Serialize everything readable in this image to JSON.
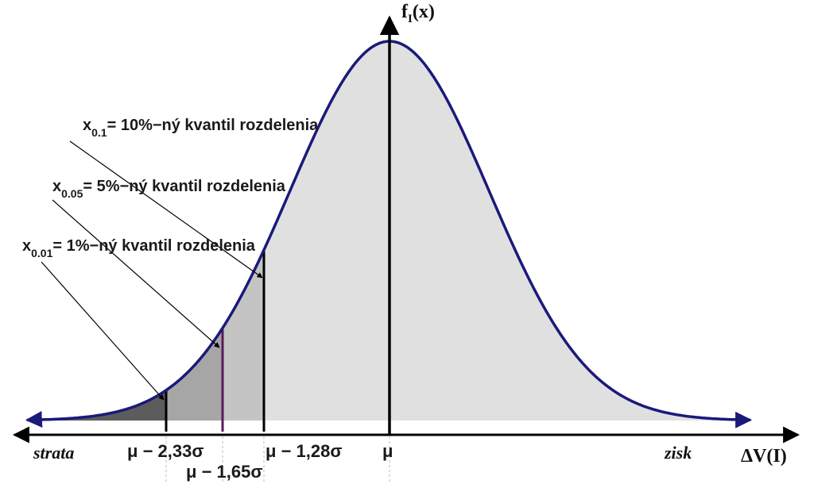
{
  "axes": {
    "y_label_main": "f",
    "y_label_sub": "I",
    "y_label_arg": "(x)",
    "x_label_delta": "ΔV(I)",
    "left_word": "strata",
    "right_word": "zisk"
  },
  "annotations": [
    {
      "var": "x",
      "sub": "0.1",
      "text": "= 10%−ný kvantil rozdelenia"
    },
    {
      "var": "x",
      "sub": "0.05",
      "text": "= 5%−ný kvantil rozdelenia"
    },
    {
      "var": "x",
      "sub": "0.01",
      "text": "= 1%−ný kvantil rozdelenia"
    }
  ],
  "tick_labels": {
    "mu": "μ",
    "mu_233": "μ − 2,33σ",
    "mu_165": "μ − 1,65σ",
    "mu_128": "μ − 1,28σ"
  },
  "colors": {
    "curve": "#1a1a7a",
    "fill_main": "#e0e0e0",
    "fill_10": "#c4c4c4",
    "fill_5": "#a6a6a6",
    "fill_1": "#5c5c5c",
    "quantile_5_line": "#5a1a5a"
  }
}
